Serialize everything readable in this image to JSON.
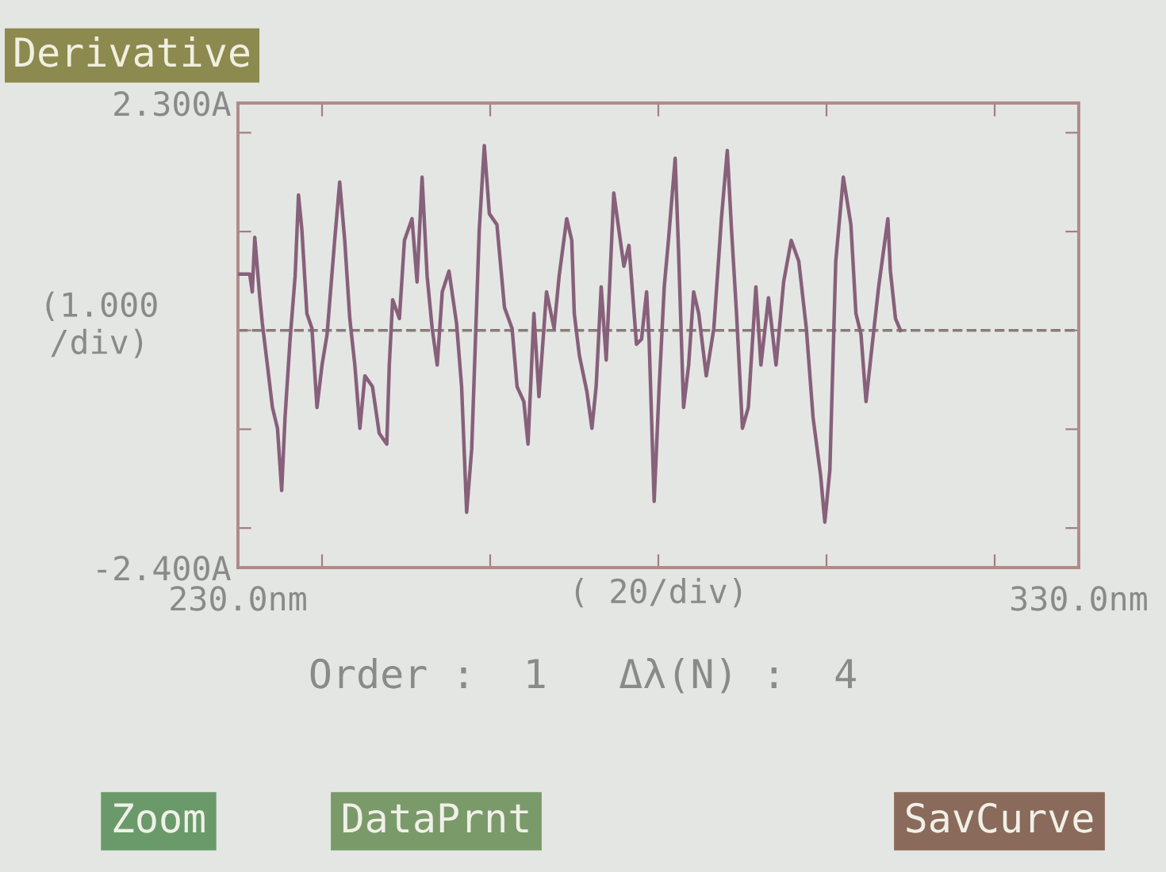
{
  "chart_data": {
    "type": "line",
    "title": "Derivative",
    "xlabel": "( 20/div)",
    "ylabel": "(1.000\n/div)",
    "annotations": [
      "Order :  1   Δλ(N) :  4",
      "Zoom",
      "DataPrnt",
      "SavCurve"
    ],
    "xlim": [
      230,
      330
    ],
    "ylim": [
      -2.4,
      2.3
    ],
    "xticks": [
      {
        "value": 230,
        "label": "230.0nm"
      },
      {
        "value": 240,
        "label": null
      },
      {
        "value": 260,
        "label": null
      },
      {
        "value": 280,
        "label": null
      },
      {
        "value": 300,
        "label": null
      },
      {
        "value": 320,
        "label": null
      },
      {
        "value": 330,
        "label": "330.0nm"
      }
    ],
    "yticks": [
      {
        "value": -2.4,
        "label": "-2.400A"
      },
      {
        "value": -2,
        "label": null
      },
      {
        "value": -1,
        "label": null
      },
      {
        "value": 0,
        "label": null
      },
      {
        "value": 1,
        "label": null
      },
      {
        "value": 2,
        "label": null
      },
      {
        "value": 2.3,
        "label": "2.300A"
      }
    ],
    "ref_lines": [
      {
        "axis": "y",
        "value": 0,
        "label": null,
        "color": "#8a7a78",
        "line_style": "dashed"
      }
    ],
    "grid": false,
    "legend": false,
    "marker": "none",
    "line_style": "solid",
    "series": [
      {
        "color": "#87607a",
        "x": [
          230.0,
          231.4,
          231.7,
          232.0,
          232.6,
          232.9,
          233.5,
          234.1,
          234.7,
          235.2,
          235.6,
          236.2,
          236.8,
          237.2,
          237.6,
          238.2,
          238.8,
          239.4,
          240.0,
          240.6,
          241.5,
          242.1,
          242.7,
          243.3,
          243.9,
          244.5,
          245.1,
          246.0,
          246.8,
          247.7,
          248.0,
          248.4,
          249.2,
          249.8,
          250.7,
          251.3,
          251.9,
          252.5,
          253.1,
          253.7,
          254.3,
          255.1,
          256.0,
          256.6,
          257.2,
          257.8,
          258.7,
          259.3,
          259.9,
          260.8,
          261.7,
          262.6,
          263.2,
          264.0,
          264.5,
          265.2,
          265.8,
          266.7,
          267.6,
          268.2,
          269.1,
          269.7,
          270.0,
          270.6,
          271.5,
          272.1,
          272.6,
          273.2,
          273.8,
          274.7,
          275.3,
          275.9,
          276.5,
          277.4,
          278.0,
          278.6,
          278.9,
          279.5,
          280.1,
          280.7,
          281.2,
          282.0,
          282.4,
          283.0,
          283.6,
          284.2,
          284.8,
          285.7,
          286.6,
          287.5,
          288.2,
          288.7,
          289.3,
          290.0,
          290.7,
          291.6,
          292.2,
          293.1,
          294.0,
          294.9,
          295.8,
          296.7,
          297.6,
          298.4,
          299.3,
          299.8,
          300.4,
          301.1,
          302.0,
          302.9,
          303.5,
          304.1,
          304.7,
          305.3,
          306.2,
          307.3,
          307.6,
          308.2,
          308.8
        ],
        "values": [
          0.57,
          0.57,
          0.39,
          0.94,
          0.33,
          0.07,
          -0.35,
          -0.78,
          -0.99,
          -1.62,
          -0.88,
          -0.09,
          0.55,
          1.37,
          1.02,
          0.17,
          0.02,
          -0.78,
          -0.35,
          -0.04,
          0.91,
          1.5,
          0.91,
          0.12,
          -0.35,
          -0.99,
          -0.46,
          -0.57,
          -1.04,
          -1.15,
          -0.35,
          0.31,
          0.12,
          0.91,
          1.13,
          0.49,
          1.55,
          0.55,
          0.02,
          -0.35,
          0.39,
          0.6,
          0.07,
          -0.57,
          -1.84,
          -1.2,
          1.02,
          1.87,
          1.18,
          1.07,
          0.23,
          0.02,
          -0.57,
          -0.72,
          -1.15,
          0.17,
          -0.67,
          0.39,
          0.02,
          0.55,
          1.13,
          0.91,
          0.17,
          -0.25,
          -0.62,
          -0.99,
          -0.57,
          0.44,
          -0.3,
          1.39,
          1.02,
          0.65,
          0.86,
          -0.14,
          -0.09,
          0.39,
          -0.09,
          -1.73,
          -0.57,
          0.44,
          0.91,
          1.74,
          0.81,
          -0.78,
          -0.35,
          0.39,
          0.17,
          -0.46,
          0.02,
          1.13,
          1.82,
          1.02,
          0.17,
          -0.99,
          -0.78,
          0.44,
          -0.35,
          0.33,
          -0.35,
          0.49,
          0.91,
          0.7,
          0.02,
          -0.88,
          -1.47,
          -1.94,
          -1.41,
          0.7,
          1.55,
          1.07,
          0.17,
          -0.04,
          -0.72,
          -0.25,
          0.44,
          1.13,
          0.6,
          0.12,
          0.0
        ]
      }
    ]
  }
}
